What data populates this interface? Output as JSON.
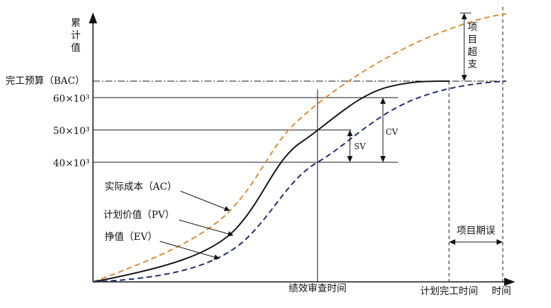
{
  "axes": {
    "y_label": "累计值",
    "x_label": "时间"
  },
  "levels": {
    "bac": "完工预算（BAC）",
    "v60": "60×10³",
    "v50": "50×10³",
    "v40": "40×10³"
  },
  "markers": {
    "review": "绩效审查时间",
    "planned_finish": "计划完工时间"
  },
  "curves": {
    "ac": "实际成本（AC）",
    "pv": "计划价值（PV）",
    "ev": "挣值（EV）"
  },
  "annotations": {
    "sv": "SV",
    "cv": "CV",
    "overrun": "项目超支",
    "delay": "项目期误"
  },
  "colors": {
    "ac": "#d98b3a",
    "pv": "#111111",
    "ev": "#1f2a6b"
  }
}
